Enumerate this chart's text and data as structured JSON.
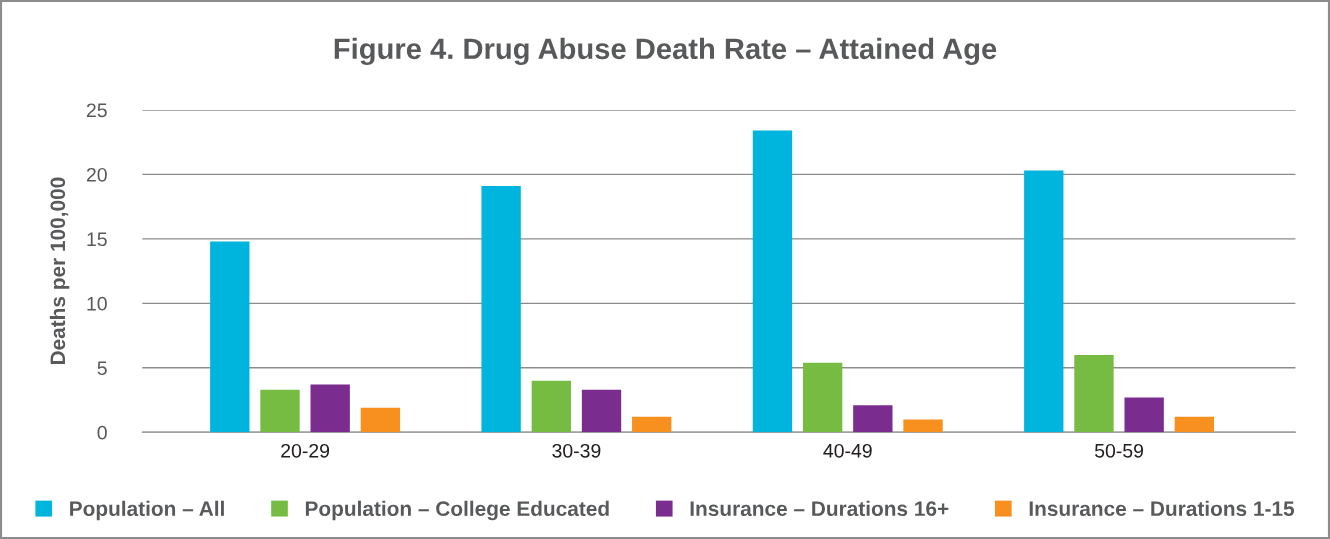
{
  "chart_data": {
    "type": "bar",
    "title": "Figure 4. Drug Abuse Death Rate – Attained Age",
    "ylabel": "Deaths per 100,000",
    "categories": [
      "20-29",
      "30-39",
      "40-49",
      "50-59"
    ],
    "series": [
      {
        "name": "Population – All",
        "color": "#00b5dd",
        "values": [
          14.8,
          19.1,
          23.4,
          20.3
        ]
      },
      {
        "name": "Population – College Educated",
        "color": "#76bc43",
        "values": [
          3.3,
          4.0,
          5.4,
          6.0
        ]
      },
      {
        "name": "Insurance – Durations 16+",
        "color": "#7b2c8f",
        "values": [
          3.7,
          3.3,
          2.1,
          2.7
        ]
      },
      {
        "name": "Insurance – Durations 1-15",
        "color": "#f7901e",
        "values": [
          1.9,
          1.2,
          1.0,
          1.2
        ]
      }
    ],
    "ylim": [
      0,
      25
    ],
    "yticks": [
      0,
      5,
      10,
      15,
      20,
      25
    ],
    "grid": "y",
    "legend": "bottom"
  }
}
